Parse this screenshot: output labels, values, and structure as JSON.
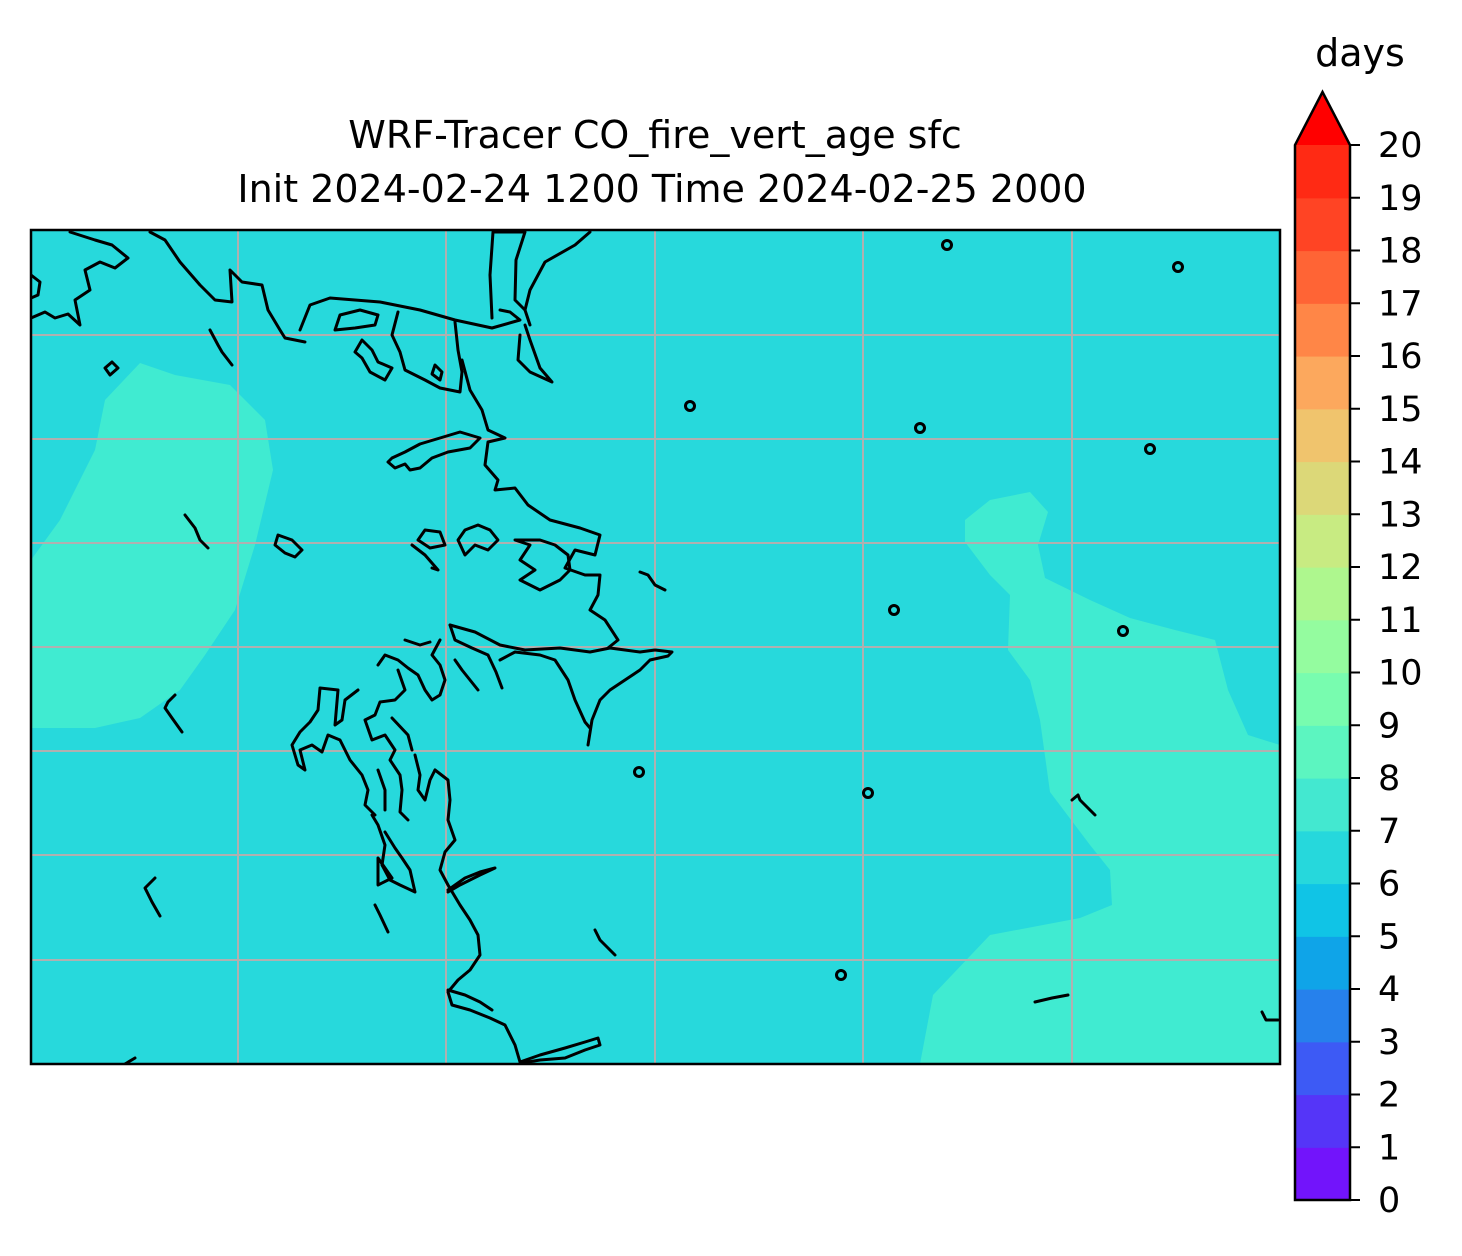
{
  "title": {
    "line1": "WRF-Tracer CO_fire_vert_age sfc",
    "line2": "Init 2024-02-24 1200 Time 2024-02-25 2000"
  },
  "colorbar": {
    "unit": "days",
    "ticks": [
      "0",
      "1",
      "2",
      "3",
      "4",
      "5",
      "6",
      "7",
      "8",
      "9",
      "10",
      "11",
      "12",
      "13",
      "14",
      "15",
      "16",
      "17",
      "18",
      "19",
      "20"
    ],
    "extend": "max",
    "colors": [
      "#7214fb",
      "#5535f8",
      "#3d5af5",
      "#2681ec",
      "#0fa4e8",
      "#10c4e6",
      "#26d8dc",
      "#43e8d0",
      "#5cf5c0",
      "#78fcaf",
      "#94fc9f",
      "#aef78e",
      "#c8eb82",
      "#dcd878",
      "#f0c46d",
      "#fca85d",
      "#ff8647",
      "#ff6435",
      "#ff4424",
      "#ff2a14",
      "#ff0000"
    ]
  },
  "map": {
    "background_level": 6.5,
    "region_colors": {
      "level_6_7": "#27d9dc",
      "level_7_8": "#40ebd1"
    },
    "gridline_color": "#b0b0b0",
    "coastline_color": "#000000"
  }
}
